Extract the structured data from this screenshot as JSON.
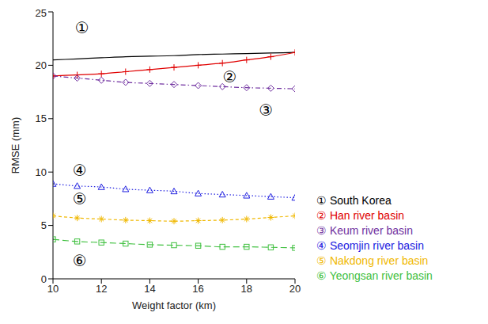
{
  "chart_data": {
    "type": "line",
    "x_label": "Weight factor (km)",
    "y_label": "RMSE (mm)",
    "x": [
      10,
      11,
      12,
      13,
      14,
      15,
      16,
      17,
      18,
      19,
      20
    ],
    "xlim": [
      10,
      20
    ],
    "xticks": [
      10,
      12,
      14,
      16,
      18,
      20
    ],
    "ylim": [
      0,
      25
    ],
    "yticks": [
      0,
      5,
      10,
      15,
      20,
      25
    ],
    "grid": false,
    "legend": "right",
    "series": [
      {
        "name": "① South Korea",
        "color": "#000000",
        "marker": "none",
        "line_style": "solid",
        "values": [
          20.5,
          20.6,
          20.7,
          20.8,
          20.85,
          20.9,
          21.0,
          21.05,
          21.1,
          21.15,
          21.2
        ]
      },
      {
        "name": "② Han river basin",
        "color": "#e00000",
        "marker": "plus",
        "line_style": "solid",
        "values": [
          19.0,
          19.1,
          19.2,
          19.4,
          19.6,
          19.8,
          20.0,
          20.2,
          20.5,
          20.8,
          21.2
        ]
      },
      {
        "name": "③ Keum river basin",
        "color": "#7030a0",
        "marker": "diamond",
        "line_style": "dashdot",
        "values": [
          19.0,
          18.8,
          18.6,
          18.4,
          18.3,
          18.2,
          18.1,
          18.0,
          17.9,
          17.85,
          17.8
        ]
      },
      {
        "name": "④ Seomjin river basin",
        "color": "#2020e0",
        "marker": "triangle",
        "line_style": "dotted",
        "values": [
          8.9,
          8.7,
          8.6,
          8.4,
          8.3,
          8.2,
          8.0,
          7.9,
          7.8,
          7.7,
          7.6
        ]
      },
      {
        "name": "⑤ Nakdong river basin",
        "color": "#f0b800",
        "marker": "asterisk",
        "line_style": "dashed",
        "values": [
          5.9,
          5.7,
          5.6,
          5.5,
          5.45,
          5.4,
          5.45,
          5.5,
          5.6,
          5.75,
          5.9
        ]
      },
      {
        "name": "⑥ Yeongsan river basin",
        "color": "#40c040",
        "marker": "square",
        "line_style": "longdash",
        "values": [
          3.7,
          3.5,
          3.4,
          3.3,
          3.2,
          3.15,
          3.1,
          3.0,
          3.0,
          2.95,
          2.9
        ]
      }
    ],
    "annotations": [
      {
        "text": "①",
        "x": 11.2,
        "y": 23.5
      },
      {
        "text": "②",
        "x": 17.3,
        "y": 18.9
      },
      {
        "text": "③",
        "x": 18.8,
        "y": 15.8
      },
      {
        "text": "④",
        "x": 11.1,
        "y": 10.2
      },
      {
        "text": "⑤",
        "x": 11.1,
        "y": 7.5
      },
      {
        "text": "⑥",
        "x": 11.1,
        "y": 1.7
      }
    ]
  }
}
